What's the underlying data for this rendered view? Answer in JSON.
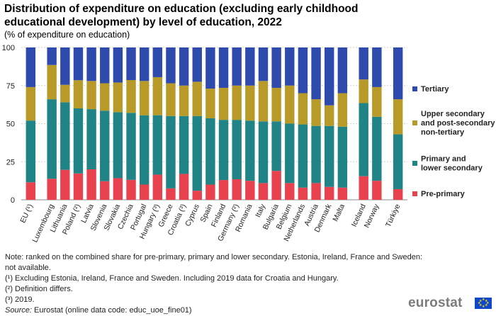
{
  "title": "Distribution of expenditure on education (excluding early childhood educational development) by level of education, 2022",
  "subtitle": "(% of expenditure on education)",
  "chart_data": {
    "type": "bar",
    "stacked": true,
    "ylim": [
      0,
      100
    ],
    "yticks": [
      0,
      25,
      50,
      75,
      100
    ],
    "grid": true,
    "legend_position": "right",
    "categories": [
      "EU (¹)",
      "Luxembourg",
      "Lithuania",
      "Poland (²)",
      "Latvia",
      "Slovenia",
      "Slovakia",
      "Czechia",
      "Portugal",
      "Hungary (³)",
      "Greece",
      "Croatia (³)",
      "Cyprus",
      "Spain",
      "Finland",
      "Germany (²)",
      "Romania",
      "Italy",
      "Bulgaria",
      "Belgium",
      "Netherlands",
      "Austria",
      "Denmark",
      "Malta",
      "Iceland",
      "Norway",
      "Türkiye"
    ],
    "groups": [
      0,
      1,
      1,
      1,
      1,
      1,
      1,
      1,
      1,
      1,
      1,
      1,
      1,
      1,
      1,
      1,
      1,
      1,
      1,
      1,
      1,
      1,
      1,
      1,
      2,
      2,
      3
    ],
    "series": [
      {
        "name": "Pre-primary",
        "color": "#e8424f",
        "values": [
          11.5,
          13.8,
          19.7,
          17.3,
          20.0,
          12.2,
          14.2,
          13.1,
          10.0,
          16.5,
          7.5,
          17.0,
          6.0,
          10.0,
          13.0,
          13.5,
          12.5,
          11.0,
          19.0,
          11.0,
          8.0,
          11.0,
          8.5,
          8.0,
          15.5,
          12.5,
          7.0
        ]
      },
      {
        "name": "Primary and lower secondary",
        "color": "#208486",
        "values": [
          40.5,
          52.2,
          44.3,
          42.7,
          39.5,
          46.3,
          43.3,
          44.0,
          45.5,
          39.0,
          47.5,
          38.0,
          49.0,
          43.5,
          39.5,
          39.0,
          39.5,
          40.5,
          32.5,
          39.0,
          41.5,
          37.5,
          40.0,
          40.0,
          48.0,
          42.0,
          36.0
        ]
      },
      {
        "name": "Upper secondary and post-secondary non-tertiary",
        "color": "#b89a28",
        "values": [
          22.0,
          22.5,
          11.5,
          18.5,
          18.5,
          18.0,
          19.5,
          21.5,
          22.5,
          25.0,
          21.5,
          20.0,
          22.5,
          19.5,
          21.0,
          22.5,
          23.0,
          26.5,
          22.0,
          25.0,
          20.5,
          17.5,
          13.5,
          22.0,
          15.5,
          19.5,
          23.0
        ]
      },
      {
        "name": "Tertiary",
        "color": "#2e4aad",
        "values": [
          26.0,
          11.5,
          24.5,
          21.5,
          22.0,
          23.5,
          23.0,
          21.4,
          22.0,
          19.5,
          23.5,
          25.0,
          22.5,
          27.0,
          26.5,
          25.0,
          25.0,
          22.0,
          26.5,
          25.0,
          30.0,
          34.0,
          38.0,
          30.0,
          21.0,
          26.0,
          34.0
        ]
      }
    ],
    "legend": [
      {
        "label": "Tertiary"
      },
      {
        "label": "Upper secondary and post-secondary non-tertiary",
        "lines": [
          "Upper secondary",
          "and post-secondary",
          "non-tertiary"
        ]
      },
      {
        "label": "Primary and lower secondary",
        "lines": [
          "Primary and",
          "lower secondary"
        ]
      },
      {
        "label": "Pre-primary"
      }
    ]
  },
  "notes": {
    "note": "Note: ranked on the combined share for pre-primary, primary and lower secondary. Estonia, Ireland, France and Sweden: not available.",
    "footnote1": "(¹) Excluding Estonia, Ireland, France and Sweden. Including  2019 data for Croatia and Hungary.",
    "footnote2": "(²) Definition differs.",
    "footnote3": "(³) 2019.",
    "source_label": "Source:",
    "source_text": "Eurostat (online data code: educ_uoe_fine01)"
  },
  "logo": {
    "text": "eurostat"
  }
}
